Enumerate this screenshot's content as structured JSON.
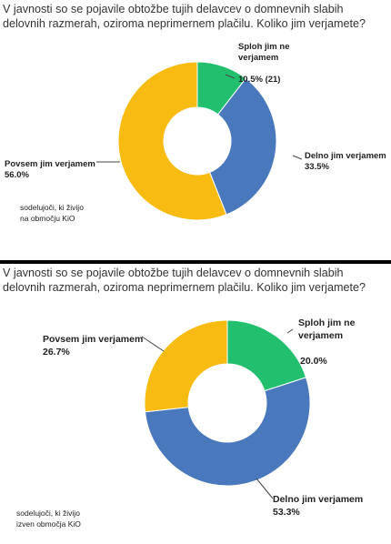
{
  "chart_data": [
    {
      "type": "pie",
      "donut": true,
      "title": "V javnosti so se pojavile obtožbe tujih delavcev o domnevnih slabih delovnih razmerah, oziroma neprimernem plačilu. Koliko jim verjamete?",
      "note_lines": [
        "sodelujoči, ki živijo",
        "na območju KiO"
      ],
      "slices": [
        {
          "name_lines": [
            "Sploh jim ne",
            "verjamem"
          ],
          "value": 10.5,
          "value_label": "10.5% (21)",
          "color": "#22c06e"
        },
        {
          "name_lines": [
            "Delno jim verjamem"
          ],
          "value": 33.5,
          "value_label": "33.5%",
          "color": "#4a78bd"
        },
        {
          "name_lines": [
            "Povsem jim verjamem"
          ],
          "value": 56.0,
          "value_label": "56.0%",
          "color": "#f7bb12"
        }
      ]
    },
    {
      "type": "pie",
      "donut": true,
      "title": "V javnosti so se pojavile obtožbe tujih delavcev o domnevnih slabih delovnih razmerah, oziroma neprimernem plačilu. Koliko jim verjamete?",
      "note_lines": [
        "sodelujoči, ki živijo",
        "izven območja KiO"
      ],
      "slices": [
        {
          "name_lines": [
            "Sploh jim ne",
            "verjamem"
          ],
          "value": 20.0,
          "value_label": "20.0%",
          "color": "#22c06e"
        },
        {
          "name_lines": [
            "Delno jim verjamem"
          ],
          "value": 53.3,
          "value_label": "53.3%",
          "color": "#4a78bd"
        },
        {
          "name_lines": [
            "Povsem jim verjamem"
          ],
          "value": 26.7,
          "value_label": "26.7%",
          "color": "#f7bb12"
        }
      ]
    }
  ]
}
